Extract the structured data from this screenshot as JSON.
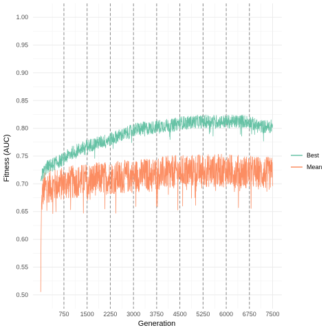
{
  "chart_data": {
    "type": "line",
    "xlabel": "Generation",
    "ylabel": "Fitness (AUC)",
    "xlim": [
      -250,
      7800
    ],
    "ylim": [
      0.475,
      1.025
    ],
    "x_ticks": [
      750,
      1500,
      2250,
      3000,
      3750,
      4500,
      5250,
      6000,
      6750,
      7500
    ],
    "x_tick_labels": [
      "750",
      "1500",
      "2250",
      "3000",
      "3750",
      "4500",
      "5250",
      "6000",
      "6750",
      "7500"
    ],
    "y_ticks": [
      0.5,
      0.55,
      0.6,
      0.65,
      0.7,
      0.75,
      0.8,
      0.85,
      0.9,
      0.95,
      1.0
    ],
    "y_tick_labels": [
      "0.50",
      "0.55",
      "0.60",
      "0.65",
      "0.70",
      "0.75",
      "0.80",
      "0.85",
      "0.90",
      "0.95",
      "1.00"
    ],
    "vlines": [
      750,
      1500,
      2250,
      3000,
      3750,
      4500,
      5250,
      6000,
      6750
    ],
    "grid": true,
    "legend": "right",
    "series": [
      {
        "name": "Best",
        "color": "#66c2a5",
        "noise": 0.012,
        "x": [
          0,
          50,
          200,
          500,
          750,
          1000,
          1500,
          2000,
          2250,
          2500,
          2750,
          3000,
          3250,
          3500,
          3750,
          4000,
          4250,
          4500,
          4750,
          5000,
          5250,
          5500,
          5750,
          6000,
          6250,
          6500,
          6750,
          7000,
          7250,
          7500
        ],
        "values": [
          0.705,
          0.717,
          0.73,
          0.738,
          0.745,
          0.756,
          0.768,
          0.776,
          0.78,
          0.786,
          0.79,
          0.797,
          0.8,
          0.8,
          0.803,
          0.805,
          0.805,
          0.81,
          0.81,
          0.812,
          0.812,
          0.813,
          0.812,
          0.812,
          0.812,
          0.813,
          0.812,
          0.804,
          0.803,
          0.804
        ]
      },
      {
        "name": "Mean",
        "color": "#fc8d62",
        "noise": 0.03,
        "x": [
          0,
          10,
          25,
          50,
          100,
          200,
          500,
          1000,
          1500,
          2000,
          2500,
          3000,
          3500,
          4000,
          4500,
          5000,
          5500,
          6000,
          6500,
          7000,
          7500
        ],
        "values": [
          0.505,
          0.6,
          0.66,
          0.68,
          0.69,
          0.695,
          0.698,
          0.703,
          0.707,
          0.71,
          0.712,
          0.714,
          0.717,
          0.72,
          0.722,
          0.724,
          0.724,
          0.724,
          0.722,
          0.72,
          0.718
        ]
      }
    ]
  }
}
